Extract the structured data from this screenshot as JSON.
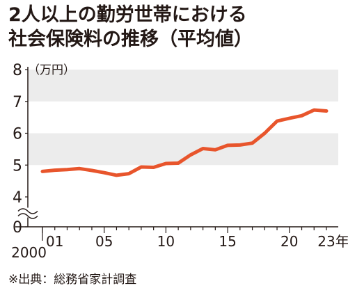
{
  "chart_data": {
    "type": "line",
    "title_lines": [
      "2人以上の勤労世帯における",
      "社会保険料の推移（平均値）"
    ],
    "unit_label": "（万円）",
    "source": "※出典：総務省家計調査",
    "y_ticks": [
      "0",
      "4",
      "5",
      "6",
      "7",
      "8"
    ],
    "ylim": [
      4,
      8
    ],
    "axis_break": true,
    "x_tick_labels": [
      "2000",
      "01",
      "05",
      "10",
      "15",
      "20",
      "23年"
    ],
    "x_tick_years": [
      2000,
      2001,
      2005,
      2010,
      2015,
      2020,
      2023
    ],
    "grid": "alternating-bands",
    "line_color": "#e8552c",
    "band_color": "#ececec",
    "x": [
      2000,
      2001,
      2002,
      2003,
      2004,
      2005,
      2006,
      2007,
      2008,
      2009,
      2010,
      2011,
      2012,
      2013,
      2014,
      2015,
      2016,
      2017,
      2018,
      2019,
      2020,
      2021,
      2022,
      2023
    ],
    "values": [
      4.8,
      4.84,
      4.86,
      4.89,
      4.83,
      4.76,
      4.68,
      4.73,
      4.94,
      4.93,
      5.05,
      5.06,
      5.32,
      5.52,
      5.48,
      5.62,
      5.63,
      5.69,
      6.0,
      6.38,
      6.47,
      6.55,
      6.73,
      6.7
    ]
  }
}
